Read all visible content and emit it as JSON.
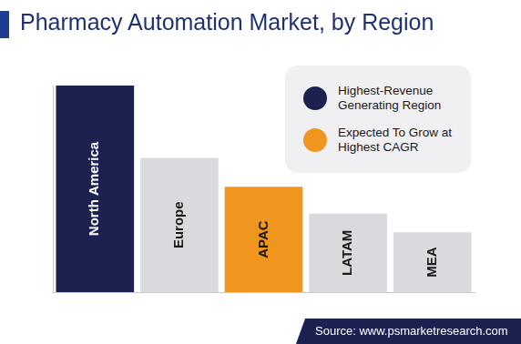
{
  "chart_data": {
    "type": "bar",
    "title": "Pharmacy Automation Market, by Region",
    "categories": [
      "North America",
      "Europe",
      "APAC",
      "LATAM",
      "MEA"
    ],
    "values": [
      100,
      65,
      51,
      38,
      29
    ],
    "colors": [
      "#1c2150",
      "#d9dadd",
      "#f0961e",
      "#d9dadd",
      "#d9dadd"
    ],
    "ylim": [
      0,
      100
    ],
    "grid": false,
    "tick_labels": false,
    "annotations": [
      {
        "text": "Highest-Revenue Generating Region",
        "color": "#1c2150"
      },
      {
        "text": "Expected To Grow at Highest CAGR",
        "color": "#f0961e"
      }
    ],
    "source": "Source: www.psmarketresearch.com"
  }
}
